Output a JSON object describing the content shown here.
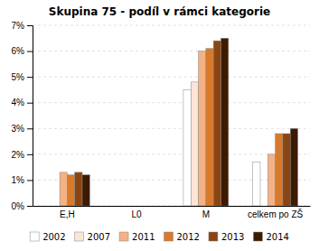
{
  "chart_data": {
    "type": "bar",
    "title": "Skupina 75 - podíl v rámci kategorie",
    "categories": [
      "E,H",
      "L0",
      "M",
      "celkem po ZŠ"
    ],
    "series": [
      {
        "name": "2002",
        "color": "#ffffff",
        "values": [
          0.0,
          0.0,
          0.045,
          0.017
        ]
      },
      {
        "name": "2007",
        "color": "#fce4d6",
        "values": [
          0.0,
          0.0,
          0.048,
          0.0
        ]
      },
      {
        "name": "2011",
        "color": "#f4b183",
        "values": [
          0.013,
          0.0,
          0.06,
          0.02
        ]
      },
      {
        "name": "2012",
        "color": "#d97a2a",
        "values": [
          0.012,
          0.0,
          0.061,
          0.028
        ]
      },
      {
        "name": "2013",
        "color": "#8b4513",
        "values": [
          0.013,
          0.0,
          0.064,
          0.028
        ]
      },
      {
        "name": "2014",
        "color": "#3d1a00",
        "values": [
          0.012,
          0.0,
          0.065,
          0.03
        ]
      }
    ],
    "ylim": [
      0,
      0.07
    ],
    "yticks": [
      {
        "value": 0.0,
        "label": "0%"
      },
      {
        "value": 0.01,
        "label": "1%"
      },
      {
        "value": 0.02,
        "label": "2%"
      },
      {
        "value": 0.03,
        "label": "3%"
      },
      {
        "value": 0.04,
        "label": "4%"
      },
      {
        "value": 0.05,
        "label": "5%"
      },
      {
        "value": 0.06,
        "label": "6%"
      },
      {
        "value": 0.07,
        "label": "7%"
      }
    ],
    "grid": true,
    "legend": "bottom"
  }
}
